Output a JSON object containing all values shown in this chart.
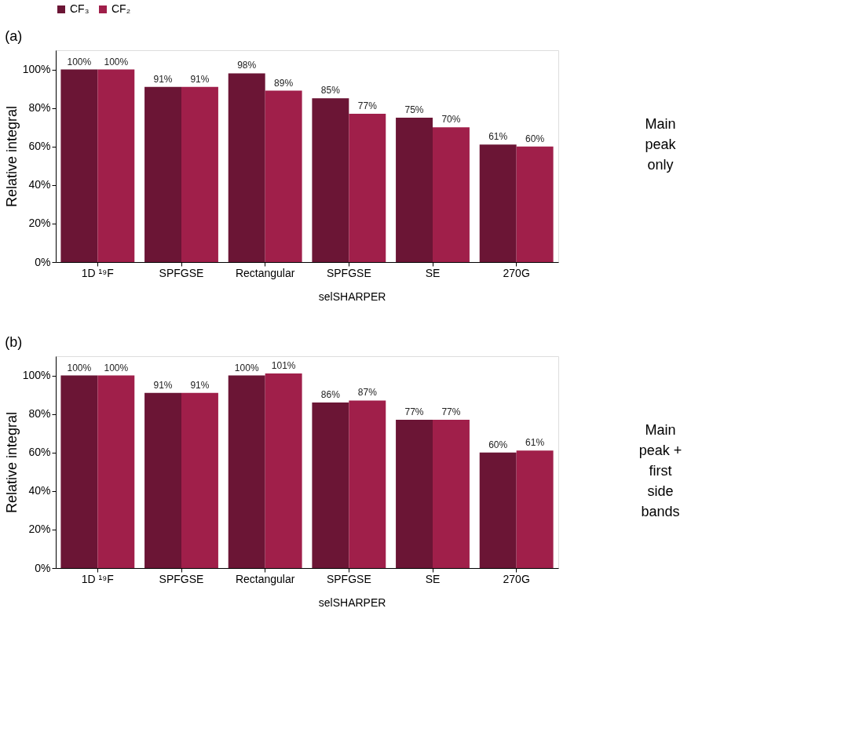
{
  "chart_data": [
    {
      "type": "bar",
      "title": "(a)",
      "ylabel": "Relative integral",
      "categories": [
        "1D ¹⁹F",
        "SPFGSE",
        "Rectangular",
        "SPFGSE",
        "SE",
        "270G"
      ],
      "ylim": [
        0,
        110
      ],
      "yticks": [
        {
          "value": 0,
          "label": "0%"
        },
        {
          "value": 20,
          "label": "20%"
        },
        {
          "value": 40,
          "label": "40%"
        },
        {
          "value": 60,
          "label": "60%"
        },
        {
          "value": 80,
          "label": "80%"
        },
        {
          "value": 100,
          "label": "100%"
        }
      ],
      "grid": false,
      "legend": "top",
      "series": [
        {
          "name": "CF₃",
          "color": "#6b1535",
          "values": [
            100,
            91,
            98,
            85,
            75,
            61
          ],
          "value_labels": [
            "100%",
            "91%",
            "98%",
            "85%",
            "75%",
            "61%"
          ]
        },
        {
          "name": "CF₂",
          "color": "#a01f4a",
          "values": [
            100,
            91,
            89,
            77,
            70,
            60
          ],
          "value_labels": [
            "100%",
            "91%",
            "89%",
            "77%",
            "70%",
            "60%"
          ]
        }
      ],
      "annotations": [
        "selSHARPER",
        "Main peak only"
      ]
    },
    {
      "type": "bar",
      "title": "(b)",
      "ylabel": "Relative integral",
      "categories": [
        "1D ¹⁹F",
        "SPFGSE",
        "Rectangular",
        "SPFGSE",
        "SE",
        "270G"
      ],
      "ylim": [
        0,
        110
      ],
      "yticks": [
        {
          "value": 0,
          "label": "0%"
        },
        {
          "value": 20,
          "label": "20%"
        },
        {
          "value": 40,
          "label": "40%"
        },
        {
          "value": 60,
          "label": "60%"
        },
        {
          "value": 80,
          "label": "80%"
        },
        {
          "value": 100,
          "label": "100%"
        }
      ],
      "grid": false,
      "legend": "top",
      "series": [
        {
          "name": "CF₃",
          "color": "#6b1535",
          "values": [
            100,
            91,
            100,
            86,
            77,
            60
          ],
          "value_labels": [
            "100%",
            "91%",
            "100%",
            "86%",
            "77%",
            "60%"
          ]
        },
        {
          "name": "CF₂",
          "color": "#a01f4a",
          "values": [
            100,
            91,
            101,
            87,
            77,
            61
          ],
          "value_labels": [
            "100%",
            "91%",
            "101%",
            "87%",
            "77%",
            "61%"
          ]
        }
      ],
      "annotations": [
        "selSHARPER",
        "Main peak + first side bands"
      ]
    }
  ]
}
